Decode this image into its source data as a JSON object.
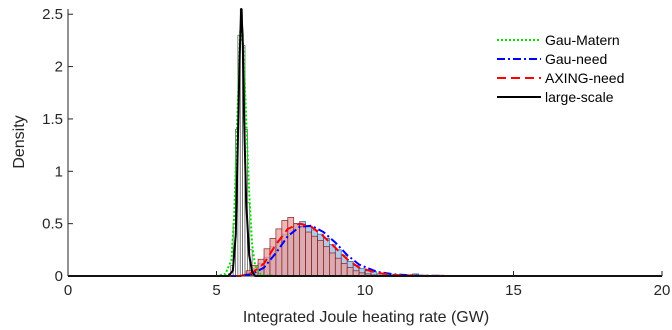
{
  "chart_data": {
    "type": "line",
    "title": "",
    "xlabel": "Integrated Joule heating rate (GW)",
    "ylabel": "Density",
    "xlim": [
      0,
      20
    ],
    "ylim": [
      0,
      2.55
    ],
    "x_ticks": [
      "0",
      "5",
      "10",
      "15",
      "20"
    ],
    "y_ticks": [
      "0",
      "0.5",
      "1",
      "1.5",
      "2",
      "2.5"
    ],
    "x_tick_values": [
      0,
      5,
      10,
      15,
      20
    ],
    "y_tick_values": [
      0,
      0.5,
      1,
      1.5,
      2,
      2.5
    ],
    "grid": false,
    "legend_position": "top-right",
    "series": [
      {
        "name": "Gau-Matern",
        "style": "dotted",
        "color": "#00e000",
        "x": [
          0,
          5.0,
          5.3,
          5.5,
          5.6,
          5.7,
          5.8,
          5.9,
          6.0,
          6.1,
          6.2,
          6.3,
          6.5,
          7.0,
          20
        ],
        "y": [
          0,
          0,
          0.02,
          0.15,
          0.6,
          1.5,
          2.35,
          2.2,
          1.5,
          0.8,
          0.3,
          0.1,
          0.01,
          0,
          0
        ]
      },
      {
        "name": "Gau-need",
        "style": "dashdot",
        "color": "#0000ff",
        "x": [
          0,
          5.8,
          6.2,
          6.6,
          7.0,
          7.4,
          7.8,
          8.2,
          8.6,
          9.0,
          9.4,
          9.8,
          10.4,
          11.0,
          11.8,
          13.0,
          20
        ],
        "y": [
          0,
          0,
          0.02,
          0.08,
          0.22,
          0.38,
          0.47,
          0.48,
          0.42,
          0.32,
          0.2,
          0.11,
          0.04,
          0.015,
          0.003,
          0,
          0
        ]
      },
      {
        "name": "AXING-need",
        "style": "dashed",
        "color": "#ff0000",
        "x": [
          0,
          5.8,
          6.2,
          6.6,
          7.0,
          7.4,
          7.8,
          8.2,
          8.6,
          9.0,
          9.4,
          9.8,
          10.4,
          11.0,
          11.8,
          13.0,
          20
        ],
        "y": [
          0,
          0,
          0.03,
          0.12,
          0.3,
          0.45,
          0.5,
          0.47,
          0.38,
          0.27,
          0.16,
          0.08,
          0.03,
          0.01,
          0.002,
          0,
          0
        ]
      },
      {
        "name": "large-scale",
        "style": "solid",
        "color": "#000000",
        "x": [
          0,
          5.4,
          5.55,
          5.65,
          5.72,
          5.78,
          5.83,
          5.88,
          5.93,
          6.0,
          6.1,
          6.2,
          6.3,
          20
        ],
        "y": [
          0,
          0,
          0.05,
          0.4,
          1.3,
          2.1,
          2.6,
          2.3,
          1.5,
          0.7,
          0.2,
          0.04,
          0,
          0
        ]
      }
    ],
    "histograms": [
      {
        "color": "#555555",
        "fill": "#ffffff",
        "bin_width": 0.08,
        "bin_centers": [
          5.44,
          5.52,
          5.6,
          5.68,
          5.76,
          5.84,
          5.92,
          6.0,
          6.08,
          6.16,
          6.24,
          6.32
        ],
        "values": [
          0.02,
          0.1,
          0.5,
          1.4,
          2.3,
          2.55,
          2.2,
          1.4,
          0.7,
          0.25,
          0.07,
          0.02
        ]
      },
      {
        "color": "#1f5fa8",
        "fill": "#9bb7d8",
        "bin_width": 0.2,
        "bin_centers": [
          6.1,
          6.3,
          6.5,
          6.7,
          6.9,
          7.1,
          7.3,
          7.5,
          7.7,
          7.9,
          8.1,
          8.3,
          8.5,
          8.7,
          8.9,
          9.1,
          9.3,
          9.5,
          9.7,
          9.9,
          10.1,
          10.3,
          10.5,
          10.7,
          10.9,
          11.1,
          11.3,
          11.5,
          11.7,
          11.9
        ],
        "values": [
          0.03,
          0.06,
          0.12,
          0.18,
          0.28,
          0.34,
          0.4,
          0.44,
          0.5,
          0.52,
          0.47,
          0.44,
          0.4,
          0.36,
          0.3,
          0.25,
          0.2,
          0.14,
          0.1,
          0.07,
          0.05,
          0.04,
          0.02,
          0.02,
          0.01,
          0.01,
          0.005,
          0.003,
          0.02,
          0.003
        ]
      },
      {
        "color": "#8b2020",
        "fill": "#e8a0a0",
        "bin_width": 0.2,
        "bin_centers": [
          6.1,
          6.3,
          6.5,
          6.7,
          6.9,
          7.1,
          7.3,
          7.5,
          7.7,
          7.9,
          8.1,
          8.3,
          8.5,
          8.7,
          8.9,
          9.1,
          9.3,
          9.5,
          9.7,
          9.9,
          10.1,
          10.3,
          10.5,
          10.7,
          10.9,
          11.1
        ],
        "values": [
          0.05,
          0.1,
          0.16,
          0.26,
          0.36,
          0.45,
          0.53,
          0.56,
          0.5,
          0.47,
          0.42,
          0.38,
          0.34,
          0.28,
          0.22,
          0.17,
          0.12,
          0.08,
          0.05,
          0.03,
          0.02,
          0.01,
          0.005,
          0.003,
          0.002,
          0.001
        ]
      }
    ]
  }
}
